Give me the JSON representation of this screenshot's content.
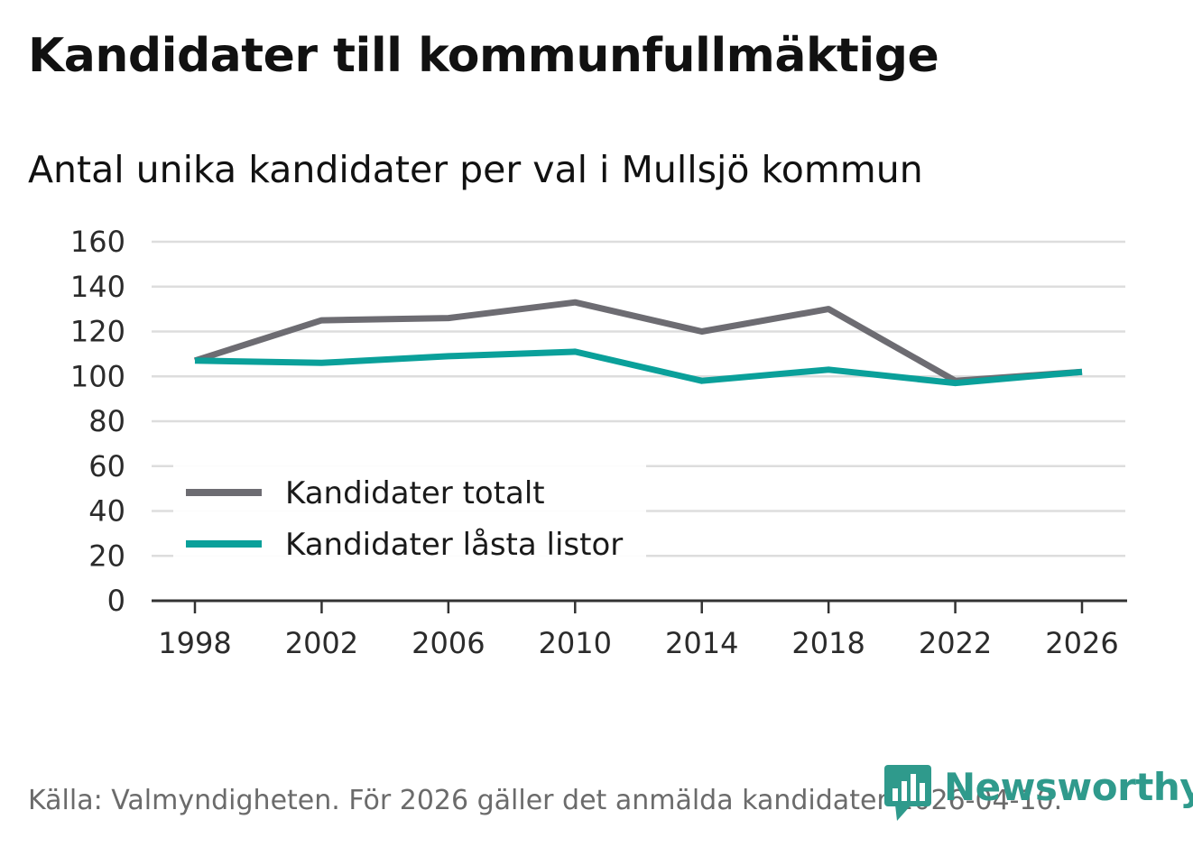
{
  "title": "Kandidater till kommunfullmäktige",
  "subtitle": "Antal unika kandidater per val i Mullsjö kommun",
  "source": "Källa: Valmyndigheten. För 2026 gäller det anmälda kandidater 2026-04-10.",
  "brand": {
    "name": "Newsworthy",
    "color": "#2f9a8c"
  },
  "chart_data": {
    "type": "line",
    "title": "Kandidater till kommunfullmäktige",
    "subtitle": "Antal unika kandidater per val i Mullsjö kommun",
    "xlabel": "",
    "ylabel": "",
    "x": [
      1998,
      2002,
      2006,
      2010,
      2014,
      2018,
      2022,
      2026
    ],
    "ylim": [
      0,
      160
    ],
    "yticks": [
      0,
      20,
      40,
      60,
      80,
      100,
      120,
      140,
      160
    ],
    "grid": true,
    "legend_position": "bottom-left",
    "series": [
      {
        "name": "Kandidater totalt",
        "color": "#6d6c72",
        "values": [
          107,
          125,
          126,
          133,
          120,
          130,
          98,
          102
        ]
      },
      {
        "name": "Kandidater låsta listor",
        "color": "#0aa09a",
        "values": [
          107,
          106,
          109,
          111,
          98,
          103,
          97,
          102
        ]
      }
    ]
  }
}
